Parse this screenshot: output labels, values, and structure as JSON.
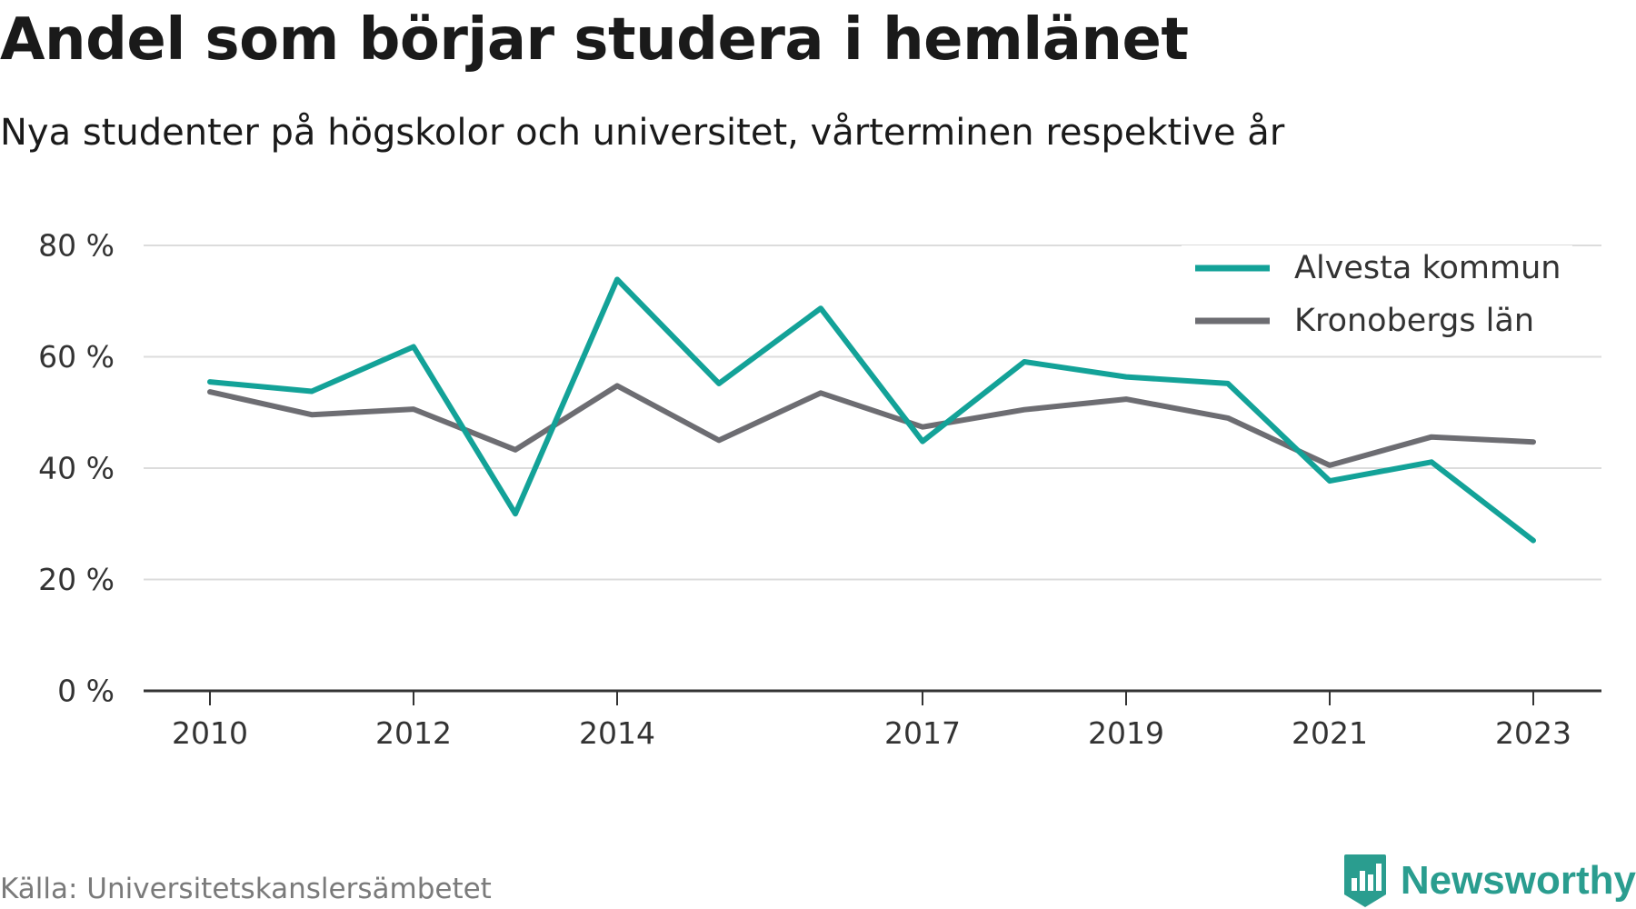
{
  "header": {
    "title": "Andel som börjar studera i hemlänet",
    "subtitle": "Nya studenter på högskolor och universitet, vårterminen respektive år"
  },
  "footer": {
    "source": "Källa: Universitetskanslersämbetet",
    "brand": "Newsworthy"
  },
  "colors": {
    "alvesta": "#13a298",
    "kronoberg": "#6d6d72",
    "grid": "#dcdcdc",
    "axis": "#333333",
    "brand": "#2a9d8f"
  },
  "chart_data": {
    "type": "line",
    "title": "Andel som börjar studera i hemlänet",
    "subtitle": "Nya studenter på högskolor och universitet, vårterminen respektive år",
    "x": [
      2010,
      2011,
      2012,
      2013,
      2014,
      2015,
      2016,
      2017,
      2018,
      2019,
      2020,
      2021,
      2022,
      2023
    ],
    "x_tick_labels": [
      "2010",
      "2012",
      "2014",
      "2017",
      "2019",
      "2021",
      "2023"
    ],
    "y_tick_labels": [
      "0 %",
      "20 %",
      "40 %",
      "60 %",
      "80 %"
    ],
    "ylim": [
      0,
      80
    ],
    "y_ticks": [
      0,
      20,
      40,
      60,
      80
    ],
    "grid": true,
    "legend_position": "top-right",
    "series": [
      {
        "name": "Alvesta kommun",
        "color": "#13a298",
        "values": [
          55.5,
          53.8,
          61.8,
          31.8,
          73.9,
          55.2,
          68.7,
          44.8,
          59.1,
          56.4,
          55.2,
          37.7,
          41.1,
          27.0
        ]
      },
      {
        "name": "Kronobergs län",
        "color": "#6d6d72",
        "values": [
          53.7,
          49.6,
          50.6,
          43.3,
          54.8,
          45.0,
          53.5,
          47.4,
          50.5,
          52.4,
          49.0,
          40.5,
          45.6,
          44.7
        ]
      }
    ]
  }
}
